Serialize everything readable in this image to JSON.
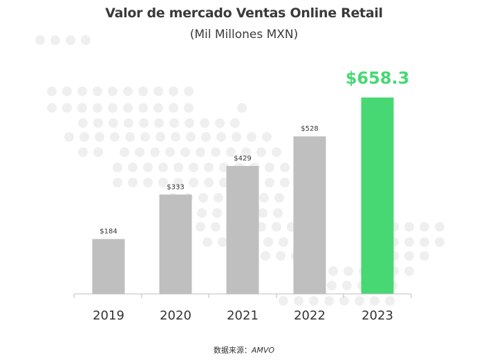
{
  "title": "Valor de mercado Ventas Online Retail",
  "subtitle": "(Mil Millones MXN)",
  "source": {
    "label": "数据来源：",
    "name": "AMVO"
  },
  "colors": {
    "bar": "#bfbfbf",
    "highlight": "#47d873",
    "dots": "#efefef",
    "axis": "#bdbdbd",
    "label": "#333333"
  },
  "chart_data": {
    "type": "bar",
    "categories": [
      "2019",
      "2020",
      "2021",
      "2022",
      "2023"
    ],
    "values": [
      184,
      333,
      429,
      528,
      658.3
    ],
    "data_labels": [
      "$184",
      "$333",
      "$429",
      "$528",
      "$658.3"
    ],
    "highlight_index": 4,
    "ylim": [
      0,
      658.3
    ],
    "grid": false,
    "legend": "none"
  }
}
